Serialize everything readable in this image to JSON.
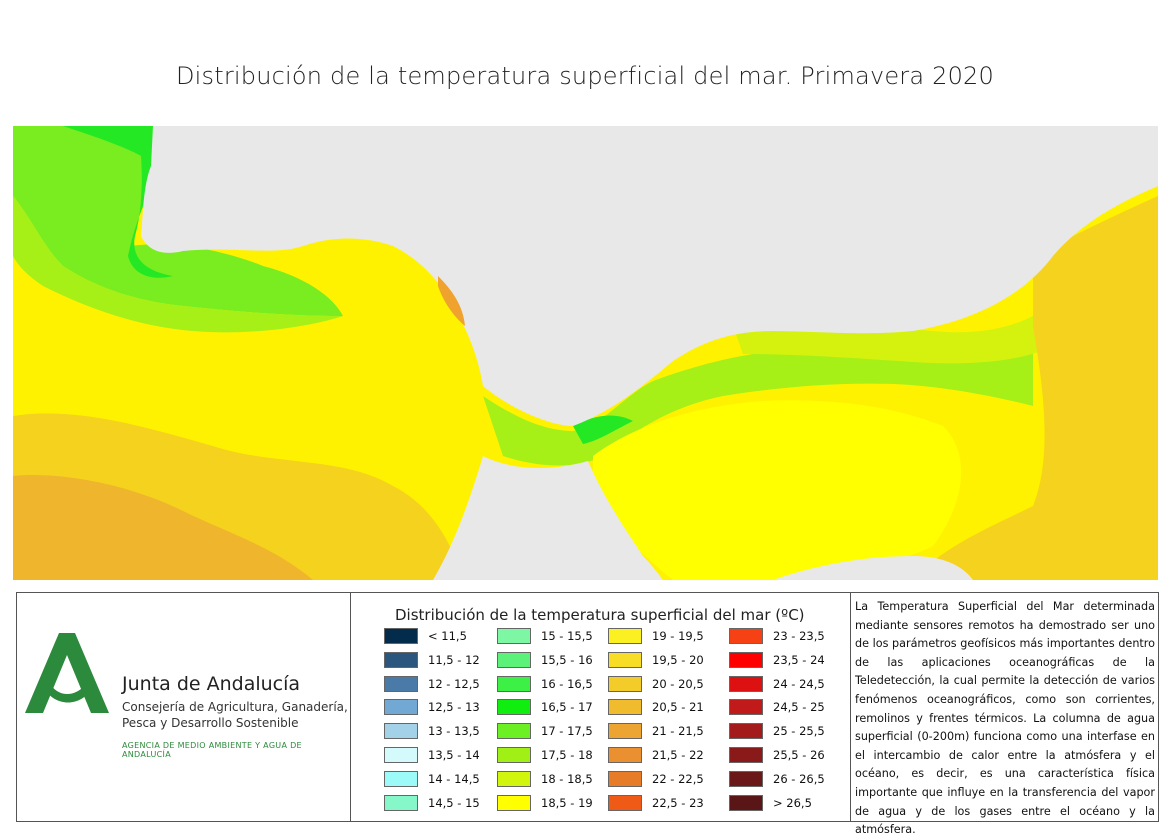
{
  "title": "Distribución de la temperatura superficial del mar. Primavera 2020",
  "map": {
    "colors": {
      "land": "#e8e8e8",
      "sea_base": "#fff200",
      "sea_warm": "#f5d21e",
      "sea_warmer": "#efb52c",
      "atlantic_green": "#7aed20",
      "upwelling_green": "#25e825",
      "mid_green": "#a6f018",
      "yellow_green": "#d4f20e",
      "channel_yellow": "#ffff00",
      "coastal_orange": "#f0a22e"
    }
  },
  "organization": {
    "name": "Junta de Andalucía",
    "dept_line1": "Consejería de Agricultura, Ganadería,",
    "dept_line2": "Pesca y Desarrollo Sostenible",
    "agency": "AGENCIA DE MEDIO AMBIENTE Y AGUA DE ANDALUCÍA",
    "logo_color": "#2c8a3c"
  },
  "legend": {
    "title": "Distribución de la temperatura superficial del mar (ºC)",
    "columns": [
      [
        {
          "label": "< 11,5",
          "color": "#032c4c"
        },
        {
          "label": "11,5 - 12",
          "color": "#2b567e"
        },
        {
          "label": "12 - 12,5",
          "color": "#4a7ba8"
        },
        {
          "label": "12,5 - 13",
          "color": "#72a8d4"
        },
        {
          "label": "13 - 13,5",
          "color": "#a3d2e8"
        },
        {
          "label": "13,5 - 14",
          "color": "#d4fafb"
        },
        {
          "label": "14 - 14,5",
          "color": "#9cfaf8"
        },
        {
          "label": "14,5 - 15",
          "color": "#86f7c8"
        }
      ],
      [
        {
          "label": "15 - 15,5",
          "color": "#7ef7a4"
        },
        {
          "label": "15,5 - 16",
          "color": "#5cf27a"
        },
        {
          "label": "16 - 16,5",
          "color": "#3cf046"
        },
        {
          "label": "16,5 - 17",
          "color": "#10ee10"
        },
        {
          "label": "17 - 17,5",
          "color": "#6cf023"
        },
        {
          "label": "17,5 - 18",
          "color": "#a0f016"
        },
        {
          "label": "18 - 18,5",
          "color": "#d2f50d"
        },
        {
          "label": "18,5 - 19",
          "color": "#ffff00"
        }
      ],
      [
        {
          "label": "19 - 19,5",
          "color": "#fbf022"
        },
        {
          "label": "19,5 - 20",
          "color": "#f7dd26"
        },
        {
          "label": "20 - 20,5",
          "color": "#f4cc2a"
        },
        {
          "label": "20,5 - 21",
          "color": "#f0bc2e"
        },
        {
          "label": "21 - 21,5",
          "color": "#eca532"
        },
        {
          "label": "21,5 - 22",
          "color": "#ea9030"
        },
        {
          "label": "22 - 22,5",
          "color": "#e77c28"
        },
        {
          "label": "22,5 - 23",
          "color": "#ef5a16"
        }
      ],
      [
        {
          "label": "23 - 23,5",
          "color": "#f54114"
        },
        {
          "label": "23,5 - 24",
          "color": "#ff0000"
        },
        {
          "label": "24 - 24,5",
          "color": "#dd1111"
        },
        {
          "label": "24,5 - 25",
          "color": "#c01a1a"
        },
        {
          "label": "25 - 25,5",
          "color": "#a31b1b"
        },
        {
          "label": "25,5 - 26",
          "color": "#8a1a1a"
        },
        {
          "label": "26 - 26,5",
          "color": "#6b1818"
        },
        {
          "label": "> 26,5",
          "color": "#5a1616"
        }
      ]
    ]
  },
  "description": "La Temperatura Superficial del Mar determinada mediante sensores remotos ha demostrado ser uno de los parámetros geofísicos más importantes dentro de las aplicaciones oceanográficas de la Teledetección, la cual permite la detección de varios fenómenos oceanográficos, como son corrientes, remolinos y frentes térmicos. La columna de agua superficial (0-200m) funciona como una interfase en el intercambio de calor entre la atmósfera y el océano, es decir, es una característica física importante que influye en la transferencia del vapor de agua y de los gases entre el océano y la atmósfera."
}
